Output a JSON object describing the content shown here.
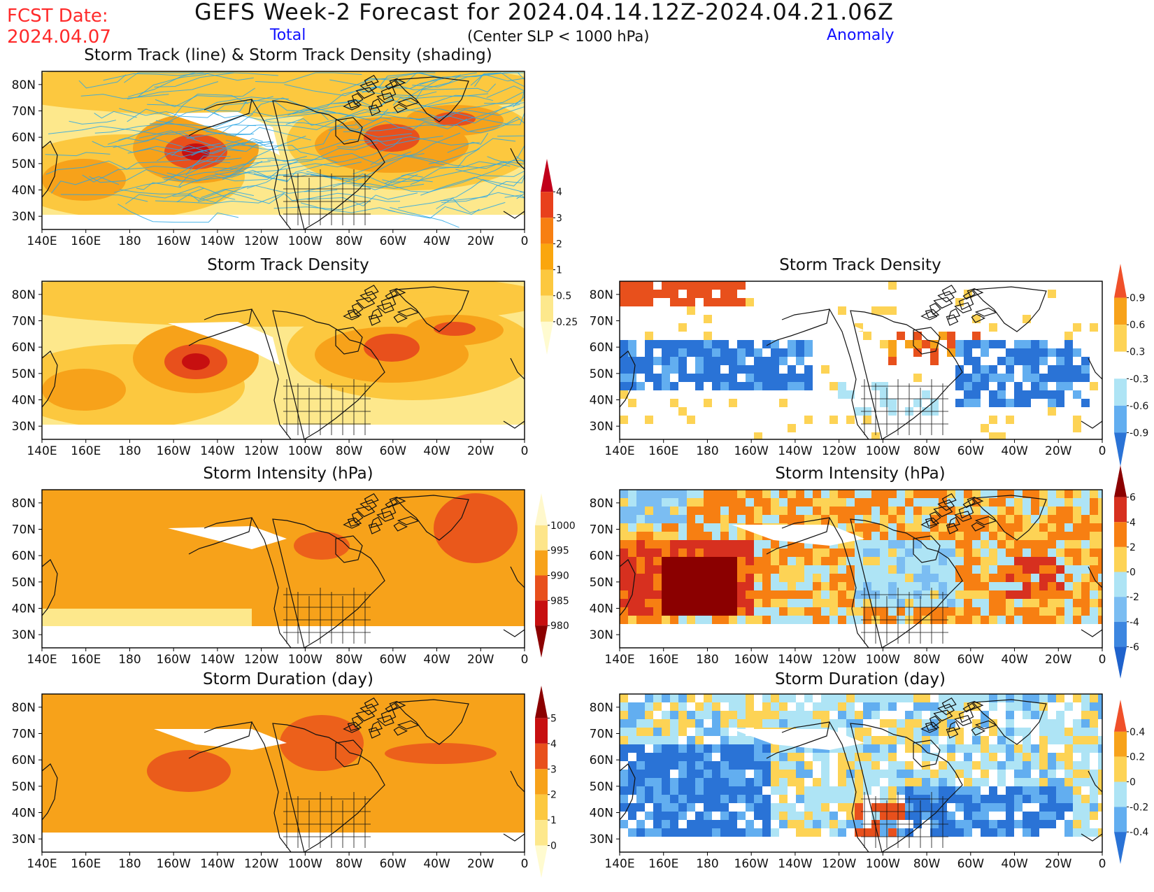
{
  "title": "GEFS Week-2 Forecast for 2024.04.14.12Z-2024.04.21.06Z",
  "fcst": {
    "label": "FCST Date:",
    "date": "2024.04.07"
  },
  "columns": {
    "total": "Total",
    "anomaly": "Anomaly"
  },
  "subtitle": "(Center SLP < 1000 hPa)",
  "lat_labels": [
    "80N",
    "70N",
    "60N",
    "50N",
    "40N",
    "30N"
  ],
  "lon_labels": [
    "140E",
    "160E",
    "180",
    "160W",
    "140W",
    "120W",
    "100W",
    "80W",
    "60W",
    "40W",
    "20W",
    "0"
  ],
  "colors": {
    "blue_text": "#1111ff",
    "red_text": "#ff2a2a",
    "track_line": "#2aa7e6"
  },
  "panels": [
    {
      "id": "track",
      "title": "Storm Track (line) & Storm Track Density (shading)",
      "palette": "warm",
      "tracks": true
    },
    {
      "id": "density-total",
      "title": "Storm Track Density",
      "palette": "warm"
    },
    {
      "id": "density-anom",
      "title": "Storm Track Density",
      "palette": "anom"
    },
    {
      "id": "intensity-total",
      "title": "Storm Intensity (hPa)",
      "palette": "warm"
    },
    {
      "id": "intensity-anom",
      "title": "Storm Intensity (hPa)",
      "palette": "anom"
    },
    {
      "id": "duration-total",
      "title": "Storm Duration (day)",
      "palette": "warm"
    },
    {
      "id": "duration-anom",
      "title": "Storm Duration (day)",
      "palette": "anom"
    }
  ],
  "colorbars": [
    {
      "id": "cb-density-total",
      "labels": [
        "4",
        "3",
        "2",
        "1",
        "0.5",
        "0.25"
      ],
      "colors": [
        "#c1001b",
        "#e8401c",
        "#f77f12",
        "#faa60e",
        "#fcc83f",
        "#fde88c",
        "#fffbd0"
      ]
    },
    {
      "id": "cb-density-anom",
      "labels": [
        "0.9",
        "0.6",
        "0.3",
        "-0.3",
        "-0.6",
        "-0.9"
      ],
      "colors": [
        "#f0502a",
        "#f7a21a",
        "#fdd355",
        "#ffffff",
        "#aee4f5",
        "#62aef0",
        "#2a73d6"
      ]
    },
    {
      "id": "cb-intensity-total",
      "labels": [
        "1000",
        "995",
        "990",
        "985",
        "980"
      ],
      "colors": [
        "#fff8cc",
        "#fde58a",
        "#f7a21a",
        "#e8501c",
        "#c70f10",
        "#8b0000"
      ]
    },
    {
      "id": "cb-intensity-anom",
      "labels": [
        "6",
        "4",
        "2",
        "0",
        "-2",
        "-4",
        "-6"
      ],
      "colors": [
        "#8b0000",
        "#d7301f",
        "#f77f12",
        "#fdd355",
        "#aee4f5",
        "#7bbdf2",
        "#3c86e0",
        "#1f62cc"
      ]
    },
    {
      "id": "cb-duration-total",
      "labels": [
        "5",
        "4",
        "3",
        "2",
        "1",
        "0"
      ],
      "colors": [
        "#8b0000",
        "#c70f10",
        "#e8501c",
        "#f7a21a",
        "#fcc83f",
        "#fde88c",
        "#fffbd0"
      ]
    },
    {
      "id": "cb-duration-anom",
      "labels": [
        "0.4",
        "0.2",
        "0",
        "-0.2",
        "-0.4"
      ],
      "colors": [
        "#f0502a",
        "#f7a21a",
        "#fdd355",
        "#aee4f5",
        "#62aef0",
        "#2a73d6"
      ]
    }
  ]
}
